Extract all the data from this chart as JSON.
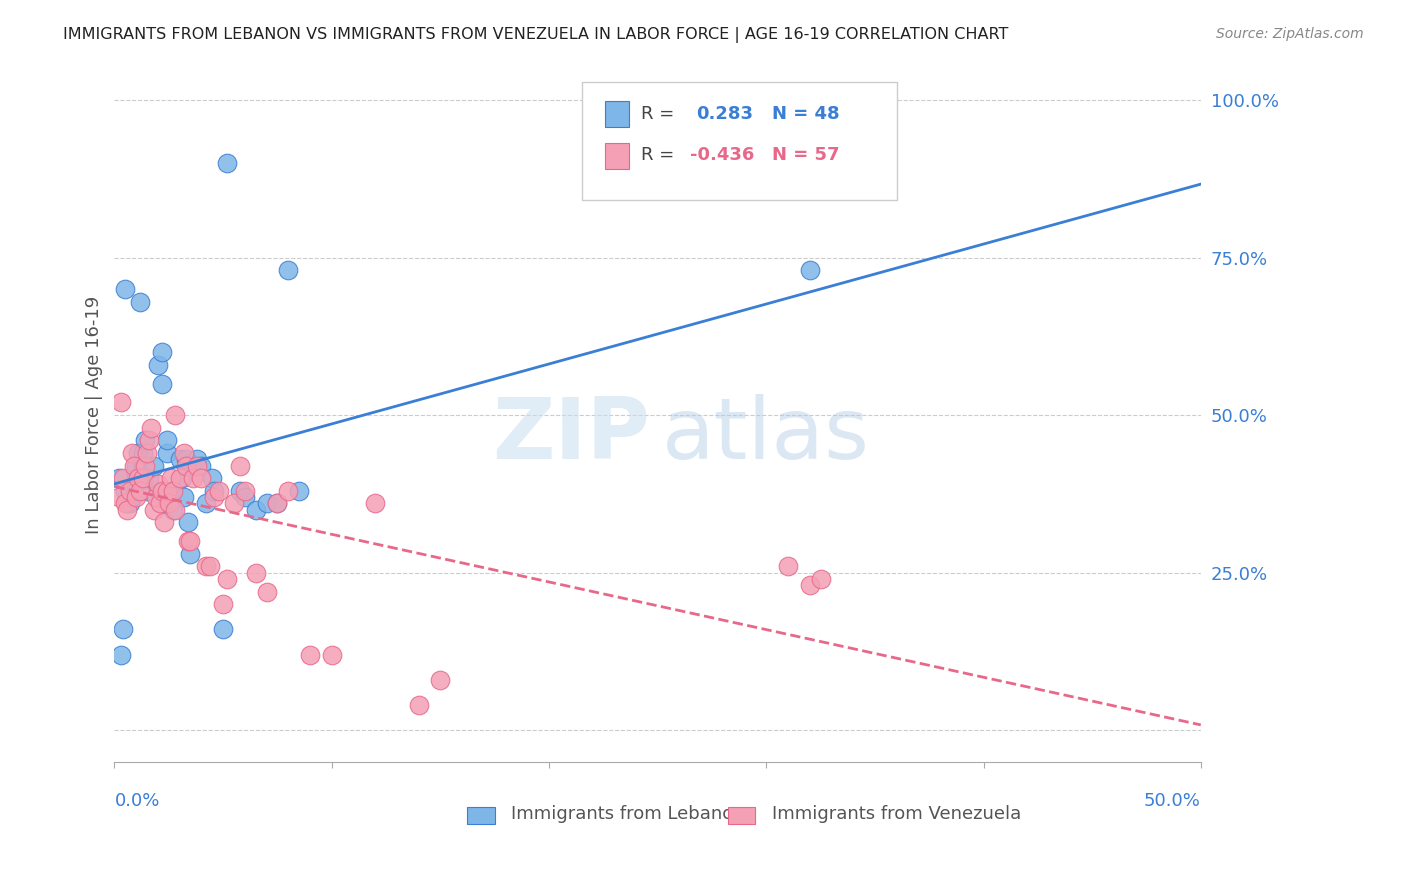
{
  "title": "IMMIGRANTS FROM LEBANON VS IMMIGRANTS FROM VENEZUELA IN LABOR FORCE | AGE 16-19 CORRELATION CHART",
  "source": "Source: ZipAtlas.com",
  "ylabel": "In Labor Force | Age 16-19",
  "y_ticks": [
    0.0,
    0.25,
    0.5,
    0.75,
    1.0
  ],
  "y_tick_labels": [
    "",
    "25.0%",
    "50.0%",
    "75.0%",
    "100.0%"
  ],
  "x_lim": [
    0.0,
    0.5
  ],
  "y_lim": [
    -0.05,
    1.05
  ],
  "lebanon_R": 0.283,
  "lebanon_N": 48,
  "venezuela_R": -0.436,
  "venezuela_N": 57,
  "lebanon_color": "#7eb6e8",
  "venezuela_color": "#f4a0b5",
  "lebanon_line_color": "#3a7fd5",
  "venezuela_line_color": "#e8688a",
  "lebanon_x": [
    0.002,
    0.003,
    0.004,
    0.005,
    0.006,
    0.007,
    0.008,
    0.009,
    0.01,
    0.01,
    0.011,
    0.012,
    0.013,
    0.013,
    0.014,
    0.015,
    0.016,
    0.018,
    0.02,
    0.022,
    0.022,
    0.024,
    0.024,
    0.025,
    0.026,
    0.027,
    0.03,
    0.031,
    0.032,
    0.033,
    0.034,
    0.035,
    0.038,
    0.04,
    0.042,
    0.045,
    0.046,
    0.05,
    0.052,
    0.058,
    0.06,
    0.065,
    0.07,
    0.075,
    0.08,
    0.085,
    0.32,
    0.005
  ],
  "lebanon_y": [
    0.4,
    0.12,
    0.16,
    0.7,
    0.36,
    0.36,
    0.37,
    0.38,
    0.4,
    0.42,
    0.44,
    0.68,
    0.42,
    0.44,
    0.46,
    0.38,
    0.4,
    0.42,
    0.58,
    0.6,
    0.55,
    0.44,
    0.46,
    0.37,
    0.38,
    0.35,
    0.43,
    0.4,
    0.37,
    0.43,
    0.33,
    0.28,
    0.43,
    0.42,
    0.36,
    0.4,
    0.38,
    0.16,
    0.9,
    0.38,
    0.37,
    0.35,
    0.36,
    0.36,
    0.73,
    0.38,
    0.73,
    0.38
  ],
  "venezuela_x": [
    0.002,
    0.004,
    0.005,
    0.006,
    0.007,
    0.008,
    0.009,
    0.01,
    0.011,
    0.012,
    0.013,
    0.014,
    0.015,
    0.016,
    0.017,
    0.018,
    0.019,
    0.02,
    0.021,
    0.022,
    0.023,
    0.024,
    0.025,
    0.026,
    0.027,
    0.028,
    0.03,
    0.032,
    0.033,
    0.034,
    0.035,
    0.036,
    0.038,
    0.04,
    0.042,
    0.044,
    0.046,
    0.048,
    0.05,
    0.052,
    0.055,
    0.058,
    0.06,
    0.065,
    0.07,
    0.075,
    0.08,
    0.09,
    0.1,
    0.12,
    0.14,
    0.15,
    0.31,
    0.32,
    0.325,
    0.003,
    0.028
  ],
  "venezuela_y": [
    0.37,
    0.4,
    0.36,
    0.35,
    0.38,
    0.44,
    0.42,
    0.37,
    0.4,
    0.38,
    0.4,
    0.42,
    0.44,
    0.46,
    0.48,
    0.35,
    0.37,
    0.39,
    0.36,
    0.38,
    0.33,
    0.38,
    0.36,
    0.4,
    0.38,
    0.35,
    0.4,
    0.44,
    0.42,
    0.3,
    0.3,
    0.4,
    0.42,
    0.4,
    0.26,
    0.26,
    0.37,
    0.38,
    0.2,
    0.24,
    0.36,
    0.42,
    0.38,
    0.25,
    0.22,
    0.36,
    0.38,
    0.12,
    0.12,
    0.36,
    0.04,
    0.08,
    0.26,
    0.23,
    0.24,
    0.52,
    0.5
  ]
}
